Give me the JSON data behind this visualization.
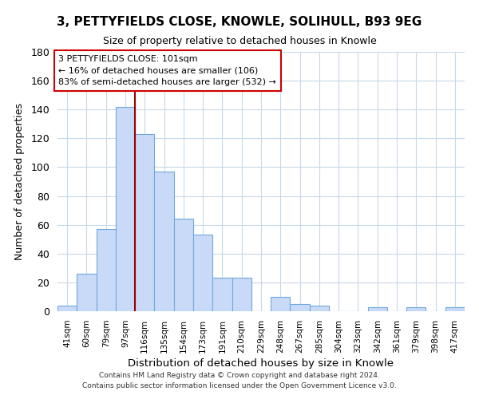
{
  "title": "3, PETTYFIELDS CLOSE, KNOWLE, SOLIHULL, B93 9EG",
  "subtitle": "Size of property relative to detached houses in Knowle",
  "xlabel": "Distribution of detached houses by size in Knowle",
  "ylabel": "Number of detached properties",
  "bar_labels": [
    "41sqm",
    "60sqm",
    "79sqm",
    "97sqm",
    "116sqm",
    "135sqm",
    "154sqm",
    "173sqm",
    "191sqm",
    "210sqm",
    "229sqm",
    "248sqm",
    "267sqm",
    "285sqm",
    "304sqm",
    "323sqm",
    "342sqm",
    "361sqm",
    "379sqm",
    "398sqm",
    "417sqm"
  ],
  "bar_values": [
    4,
    26,
    57,
    142,
    123,
    97,
    64,
    53,
    23,
    23,
    0,
    10,
    5,
    4,
    0,
    0,
    3,
    0,
    3,
    0,
    3
  ],
  "bar_color": "#c9daf8",
  "bar_edge_color": "#6fa8dc",
  "ylim": [
    0,
    180
  ],
  "yticks": [
    0,
    20,
    40,
    60,
    80,
    100,
    120,
    140,
    160,
    180
  ],
  "vline_index": 3,
  "vline_color": "#990000",
  "annotation_title": "3 PETTYFIELDS CLOSE: 101sqm",
  "annotation_line1": "← 16% of detached houses are smaller (106)",
  "annotation_line2": "83% of semi-detached houses are larger (532) →",
  "annotation_box_color": "#ffffff",
  "annotation_box_edge": "#cc0000",
  "footer1": "Contains HM Land Registry data © Crown copyright and database right 2024.",
  "footer2": "Contains public sector information licensed under the Open Government Licence v3.0.",
  "background_color": "#ffffff",
  "grid_color": "#c8d8e8"
}
